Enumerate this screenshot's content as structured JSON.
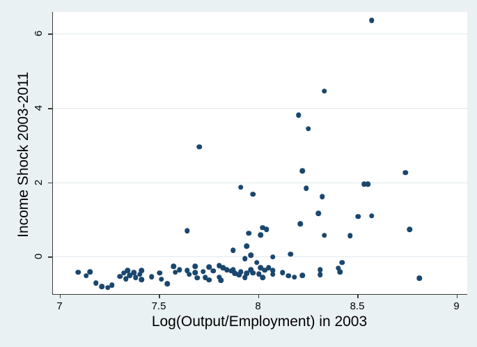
{
  "chart_data": {
    "type": "scatter",
    "title": "",
    "xlabel": "Log(Output/Employment) in 2003",
    "ylabel": "Income Shock 2003-2011",
    "xlim": [
      6.963,
      9.051
    ],
    "ylim": [
      -1.007,
      6.588
    ],
    "xticks": [
      "7",
      "7.5",
      "8",
      "8.5",
      "9"
    ],
    "xtick_values": [
      7,
      7.5,
      8,
      8.5,
      9
    ],
    "yticks": [
      "0",
      "2",
      "4",
      "6"
    ],
    "ytick_values": [
      0,
      2,
      4,
      6
    ],
    "grid": "horizontal-only",
    "legend_position": "none",
    "colors": {
      "marker": "#1a476f",
      "outer_background": "#eaf1f3",
      "plot_background": "#ffffff",
      "gridline": "#e2eaec",
      "axis": "#3b3b3b",
      "text": "#000000"
    },
    "points": [
      [
        8.57,
        6.36
      ],
      [
        8.33,
        4.46
      ],
      [
        8.2,
        3.81
      ],
      [
        8.25,
        3.44
      ],
      [
        7.7,
        2.96
      ],
      [
        8.22,
        2.31
      ],
      [
        8.74,
        2.26
      ],
      [
        8.53,
        1.95
      ],
      [
        8.55,
        1.95
      ],
      [
        7.91,
        1.87
      ],
      [
        8.24,
        1.84
      ],
      [
        7.97,
        1.68
      ],
      [
        8.32,
        1.61
      ],
      [
        8.3,
        1.16
      ],
      [
        8.57,
        1.1
      ],
      [
        8.5,
        1.08
      ],
      [
        8.21,
        0.88
      ],
      [
        8.02,
        0.78
      ],
      [
        8.76,
        0.73
      ],
      [
        8.04,
        0.73
      ],
      [
        7.64,
        0.7
      ],
      [
        7.95,
        0.63
      ],
      [
        8.01,
        0.58
      ],
      [
        8.33,
        0.57
      ],
      [
        8.46,
        0.56
      ],
      [
        7.94,
        0.28
      ],
      [
        7.87,
        0.17
      ],
      [
        8.16,
        0.07
      ],
      [
        7.96,
        0.04
      ],
      [
        8.07,
        -0.01
      ],
      [
        7.93,
        -0.05
      ],
      [
        7.99,
        -0.16
      ],
      [
        8.42,
        -0.16
      ],
      [
        7.09,
        -0.42
      ],
      [
        7.13,
        -0.51
      ],
      [
        7.15,
        -0.41
      ],
      [
        7.18,
        -0.71
      ],
      [
        7.21,
        -0.8
      ],
      [
        7.24,
        -0.83
      ],
      [
        7.26,
        -0.77
      ],
      [
        7.3,
        -0.53
      ],
      [
        7.32,
        -0.44
      ],
      [
        7.33,
        -0.6
      ],
      [
        7.34,
        -0.37
      ],
      [
        7.35,
        -0.5
      ],
      [
        7.37,
        -0.43
      ],
      [
        7.38,
        -0.56
      ],
      [
        7.4,
        -0.48
      ],
      [
        7.41,
        -0.37
      ],
      [
        7.41,
        -0.62
      ],
      [
        7.46,
        -0.54
      ],
      [
        7.5,
        -0.44
      ],
      [
        7.51,
        -0.61
      ],
      [
        7.54,
        -0.73
      ],
      [
        7.57,
        -0.26
      ],
      [
        7.58,
        -0.42
      ],
      [
        7.6,
        -0.35
      ],
      [
        7.64,
        -0.37
      ],
      [
        7.65,
        -0.48
      ],
      [
        7.68,
        -0.26
      ],
      [
        7.68,
        -0.43
      ],
      [
        7.69,
        -0.57
      ],
      [
        7.72,
        -0.4
      ],
      [
        7.73,
        -0.56
      ],
      [
        7.75,
        -0.28
      ],
      [
        7.75,
        -0.63
      ],
      [
        7.77,
        -0.38
      ],
      [
        7.8,
        -0.24
      ],
      [
        7.8,
        -0.55
      ],
      [
        7.81,
        -0.64
      ],
      [
        7.82,
        -0.3
      ],
      [
        7.84,
        -0.35
      ],
      [
        7.86,
        -0.38
      ],
      [
        7.87,
        -0.35
      ],
      [
        7.88,
        -0.45
      ],
      [
        7.9,
        -0.49
      ],
      [
        7.91,
        -0.41
      ],
      [
        7.93,
        -0.56
      ],
      [
        7.94,
        -0.45
      ],
      [
        7.96,
        -0.35
      ],
      [
        7.97,
        -0.44
      ],
      [
        8.0,
        -0.47
      ],
      [
        8.01,
        -0.3
      ],
      [
        8.02,
        -0.56
      ],
      [
        8.03,
        -0.36
      ],
      [
        8.05,
        -0.3
      ],
      [
        8.07,
        -0.37
      ],
      [
        8.07,
        -0.48
      ],
      [
        8.12,
        -0.43
      ],
      [
        8.15,
        -0.51
      ],
      [
        8.18,
        -0.55
      ],
      [
        8.22,
        -0.5
      ],
      [
        8.31,
        -0.35
      ],
      [
        8.31,
        -0.49
      ],
      [
        8.4,
        -0.31
      ],
      [
        8.41,
        -0.41
      ],
      [
        8.81,
        -0.58
      ]
    ]
  }
}
